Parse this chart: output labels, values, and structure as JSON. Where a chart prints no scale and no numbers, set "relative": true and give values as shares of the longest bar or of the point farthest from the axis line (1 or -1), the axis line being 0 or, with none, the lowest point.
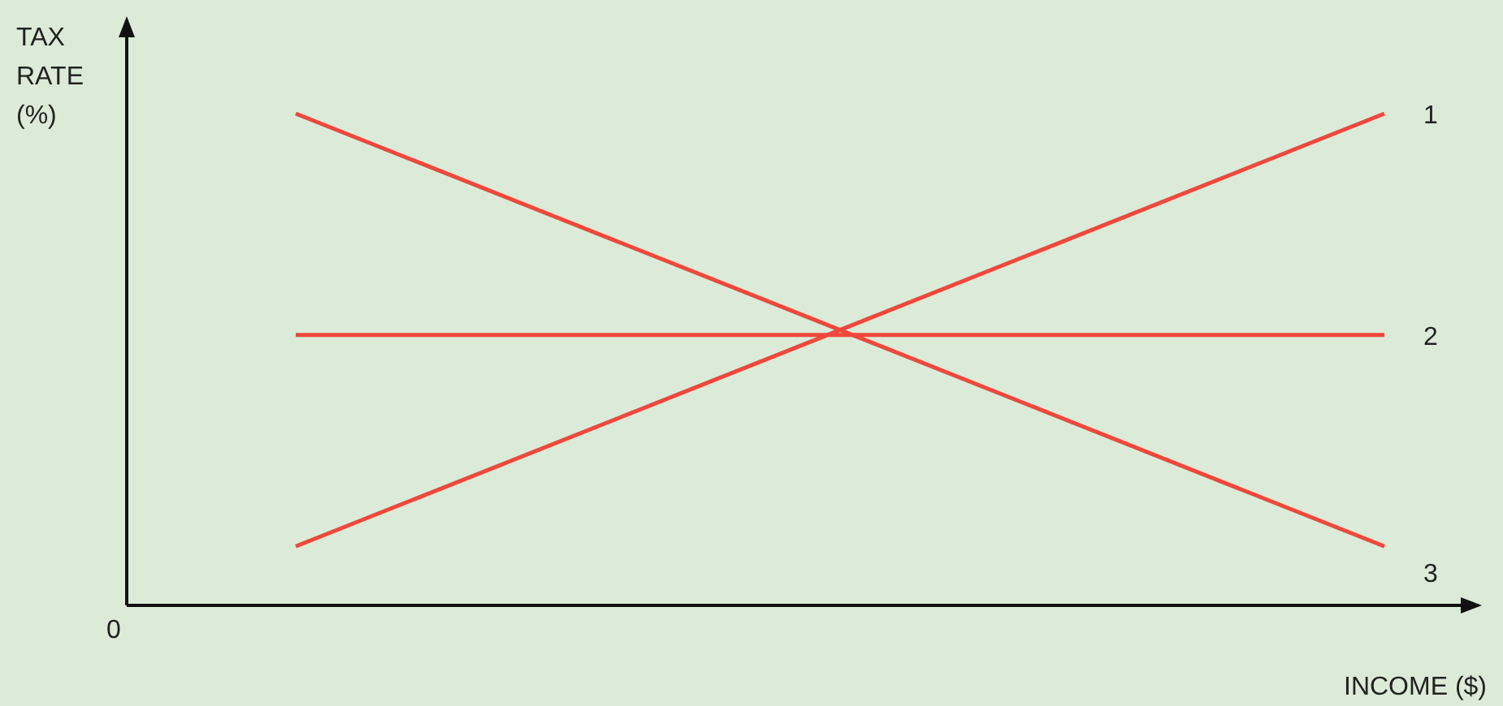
{
  "chart_data": {
    "type": "line",
    "relative": true,
    "xlabel": "INCOME ($)",
    "ylabel": "TAX RATE (%)",
    "annotations": [
      "0"
    ],
    "categories": [
      null,
      null
    ],
    "marker": "none",
    "line_style": "solid",
    "series": [
      {
        "name": "1",
        "color": "#f0483c",
        "values": [
          0.12,
          1
        ]
      },
      {
        "name": "2",
        "color": "#f0483c",
        "values": [
          0.55,
          0.55
        ]
      },
      {
        "name": "3",
        "color": "#f0483c",
        "values": [
          1,
          0.12
        ]
      }
    ]
  }
}
